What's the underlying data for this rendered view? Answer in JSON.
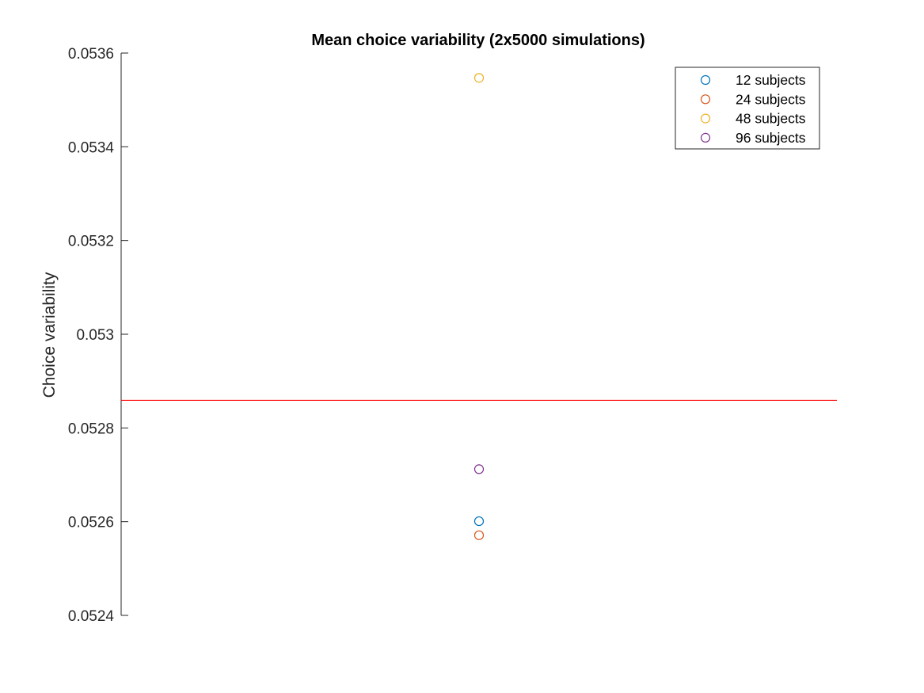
{
  "chart_data": {
    "type": "scatter",
    "title": "Mean choice variability (2x5000 simulations)",
    "xlabel": "",
    "ylabel": "Choice variability",
    "ylim": [
      0.0524,
      0.0536
    ],
    "yticks": [
      "0.0524",
      "0.0526",
      "0.0528",
      "0.053",
      "0.0532",
      "0.0534",
      "0.0536"
    ],
    "xlim": [
      0,
      2
    ],
    "grid": false,
    "legend_position": "top-right",
    "series": [
      {
        "name": "12 subjects",
        "color": "#0072BD",
        "marker": "circle-open",
        "points": [
          {
            "x": 1,
            "y": 0.052601
          }
        ]
      },
      {
        "name": "24 subjects",
        "color": "#D95319",
        "marker": "circle-open",
        "points": [
          {
            "x": 1,
            "y": 0.052571
          }
        ]
      },
      {
        "name": "48 subjects",
        "color": "#EDB120",
        "marker": "circle-open",
        "points": [
          {
            "x": 1,
            "y": 0.053547
          }
        ]
      },
      {
        "name": "96 subjects",
        "color": "#7E2F8E",
        "marker": "circle-open",
        "points": [
          {
            "x": 1,
            "y": 0.052712
          }
        ]
      }
    ],
    "reference_line": {
      "orientation": "horizontal",
      "y": 0.052859,
      "color": "#FF0000"
    }
  }
}
